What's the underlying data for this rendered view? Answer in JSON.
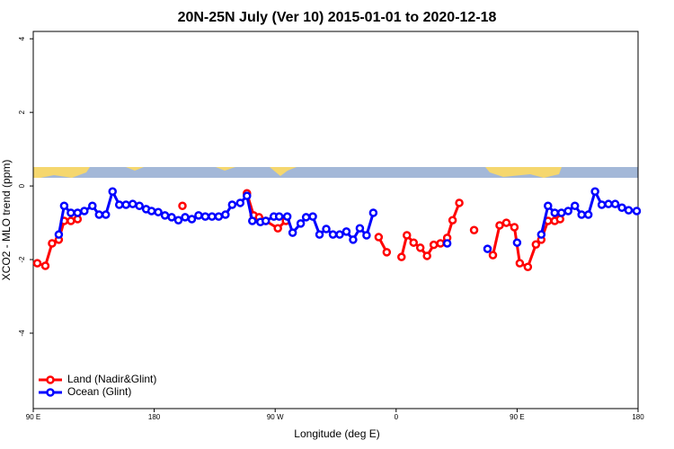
{
  "chart_data": {
    "type": "line",
    "title": "20N-25N July (Ver 10)   2015-01-01 to 2020-12-18",
    "x_label": "Longitude (deg E)",
    "y_label": "XCO2 - MLO trend (ppm)",
    "xlim": [
      90,
      540
    ],
    "xticks": [
      {
        "value": 90,
        "label": "90 E"
      },
      180,
      {
        "value": 270,
        "label": "90 W"
      },
      {
        "value": 360,
        "label": "0"
      },
      {
        "value": 450,
        "label": "90 E"
      },
      {
        "value": 540,
        "label": "180"
      }
    ],
    "ylim": [
      -6.05,
      4.2
    ],
    "yticks": [
      4,
      2,
      0,
      -2,
      -4
    ],
    "legend": "bottom-left",
    "series": [
      {
        "name": "Land (Nadir&Glint)",
        "color": "#ff0000",
        "x": [
          93,
          99,
          104,
          109,
          113,
          118,
          123,
          128,
          201,
          205,
          249,
          254,
          258,
          263,
          272,
          278,
          285,
          347,
          353,
          357,
          364,
          368,
          373,
          378,
          383,
          388,
          393,
          398,
          402,
          407,
          411,
          418,
          422,
          432,
          437,
          442,
          448,
          452,
          458,
          464,
          468,
          473,
          478,
          482
        ],
        "values": [
          -2.1,
          -2.17,
          -1.56,
          -1.46,
          -0.95,
          -0.95,
          -0.9,
          null,
          -0.54,
          null,
          -0.2,
          -0.8,
          -0.85,
          -0.95,
          -1.15,
          -0.95,
          null,
          -1.39,
          -1.8,
          null,
          -1.93,
          -1.34,
          -1.54,
          -1.68,
          -1.9,
          -1.6,
          -1.56,
          -1.41,
          -0.93,
          -0.46,
          null,
          -1.2,
          null,
          -1.88,
          -1.07,
          -1.0,
          -1.12,
          -2.1,
          -2.2,
          -1.59,
          -1.46,
          -0.95,
          -0.95,
          -0.9
        ]
      },
      {
        "name": "Ocean (Glint)",
        "color": "#0000ff",
        "x": [
          109,
          113,
          118,
          123,
          128,
          134,
          139,
          144,
          149,
          154,
          159,
          164,
          169,
          174,
          178,
          183,
          188,
          193,
          198,
          203,
          208,
          213,
          218,
          223,
          228,
          233,
          238,
          244,
          249,
          253,
          259,
          263,
          269,
          273,
          279,
          283,
          289,
          293,
          298,
          303,
          308,
          313,
          318,
          323,
          328,
          333,
          338,
          343,
          350,
          398,
          405,
          428,
          435,
          450,
          458,
          468,
          473,
          478,
          483,
          488,
          493,
          498,
          503,
          508,
          513,
          518,
          523,
          528,
          533,
          539
        ],
        "values": [
          -1.32,
          -0.54,
          -0.73,
          -0.73,
          -0.68,
          -0.54,
          -0.78,
          -0.78,
          -0.15,
          -0.51,
          -0.51,
          -0.49,
          -0.54,
          -0.63,
          -0.68,
          -0.71,
          -0.8,
          -0.85,
          -0.93,
          -0.85,
          -0.9,
          -0.8,
          -0.83,
          -0.83,
          -0.83,
          -0.78,
          -0.51,
          -0.46,
          -0.27,
          -0.95,
          -0.98,
          -0.95,
          -0.83,
          -0.83,
          -0.83,
          -1.27,
          -1.02,
          -0.85,
          -0.83,
          -1.32,
          -1.17,
          -1.32,
          -1.32,
          -1.24,
          -1.46,
          -1.15,
          -1.34,
          -0.73,
          null,
          -1.56,
          null,
          -1.71,
          null,
          -1.54,
          null,
          -1.32,
          -0.54,
          -0.73,
          -0.73,
          -0.68,
          -0.54,
          -0.78,
          -0.78,
          -0.15,
          -0.51,
          -0.49,
          -0.49,
          -0.59,
          -0.66,
          -0.68
        ]
      }
    ]
  }
}
